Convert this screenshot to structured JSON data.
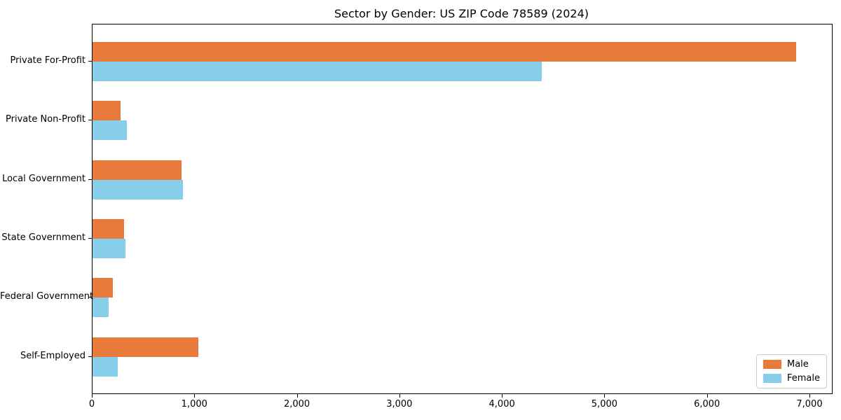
{
  "chart_data": {
    "type": "bar",
    "orientation": "horizontal",
    "title": "Sector by Gender: US ZIP Code 78589 (2024)",
    "categories": [
      "Private For-Profit",
      "Private Non-Profit",
      "Local Government",
      "State Government",
      "Federal Government",
      "Self-Employed"
    ],
    "series": [
      {
        "name": "Male",
        "color": "#e87a3b",
        "values": [
          6860,
          275,
          870,
          310,
          200,
          1030
        ]
      },
      {
        "name": "Female",
        "color": "#87ceeb",
        "values": [
          4380,
          335,
          885,
          320,
          155,
          245
        ]
      }
    ],
    "xlabel": "",
    "ylabel": "",
    "xlim": [
      0,
      7212
    ],
    "xticks": {
      "values": [
        0,
        1000,
        2000,
        3000,
        4000,
        5000,
        6000,
        7000
      ],
      "labels": [
        "0",
        "1,000",
        "2,000",
        "3,000",
        "4,000",
        "5,000",
        "6,000",
        "7,000"
      ]
    },
    "grid": false,
    "legend_position": "lower right",
    "axis_color": "#000000",
    "background_color": "#ffffff"
  }
}
